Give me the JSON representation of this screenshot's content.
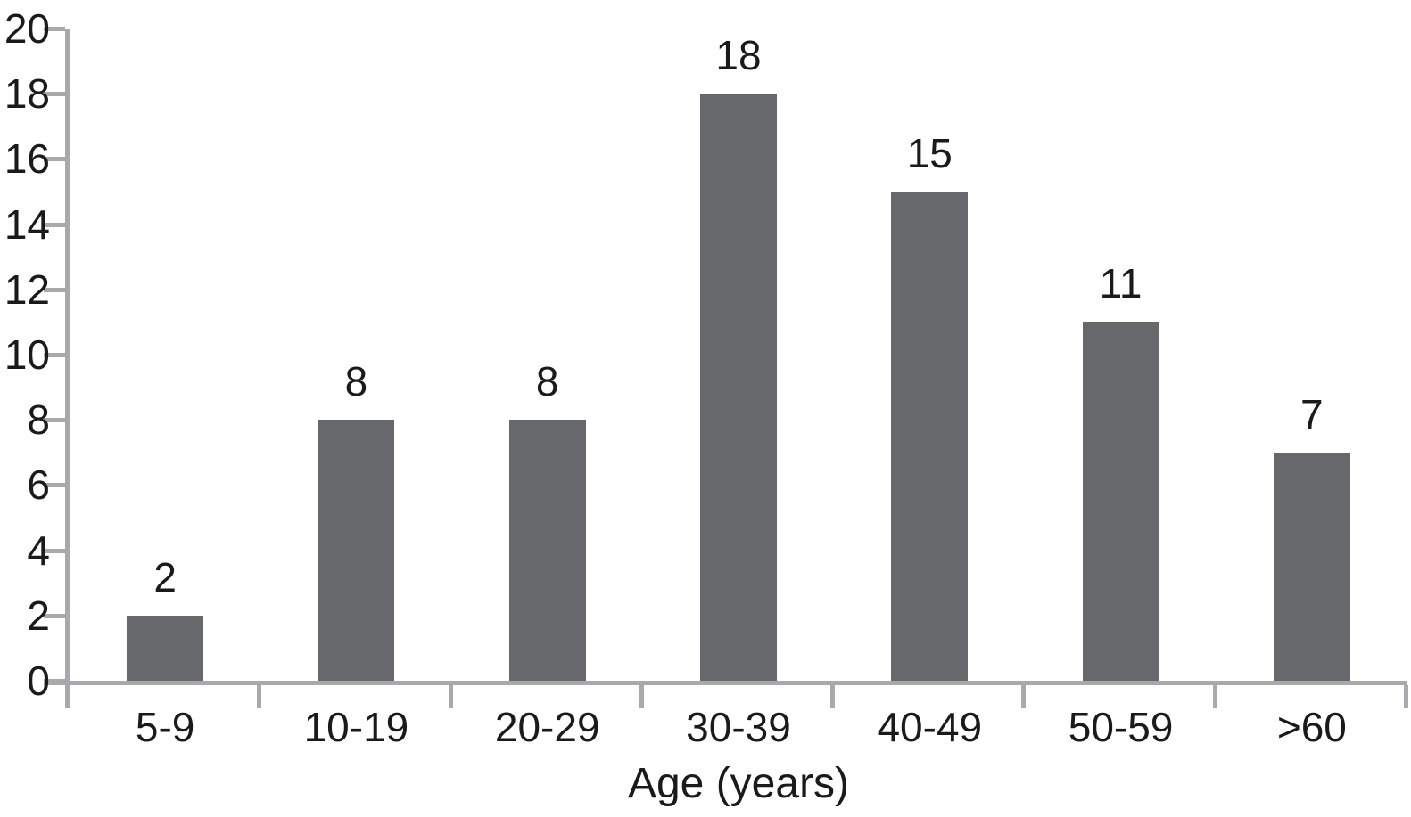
{
  "chart_data": {
    "type": "bar",
    "categories": [
      "5-9",
      "10-19",
      "20-29",
      "30-39",
      "40-49",
      "50-59",
      ">60"
    ],
    "values": [
      2,
      8,
      8,
      18,
      15,
      11,
      7
    ],
    "value_labels": [
      "2",
      "8",
      "8",
      "18",
      "15",
      "11",
      "7"
    ],
    "title": "",
    "xlabel": "Age (years)",
    "ylabel": "",
    "ylim": [
      0,
      20
    ],
    "yticks": [
      0,
      2,
      4,
      6,
      8,
      10,
      12,
      14,
      16,
      18,
      20
    ],
    "grid": false,
    "legend": false,
    "bar_color": "#67686c",
    "axis_color": "#a7a9ac",
    "text_color": "#1a1a1a"
  }
}
